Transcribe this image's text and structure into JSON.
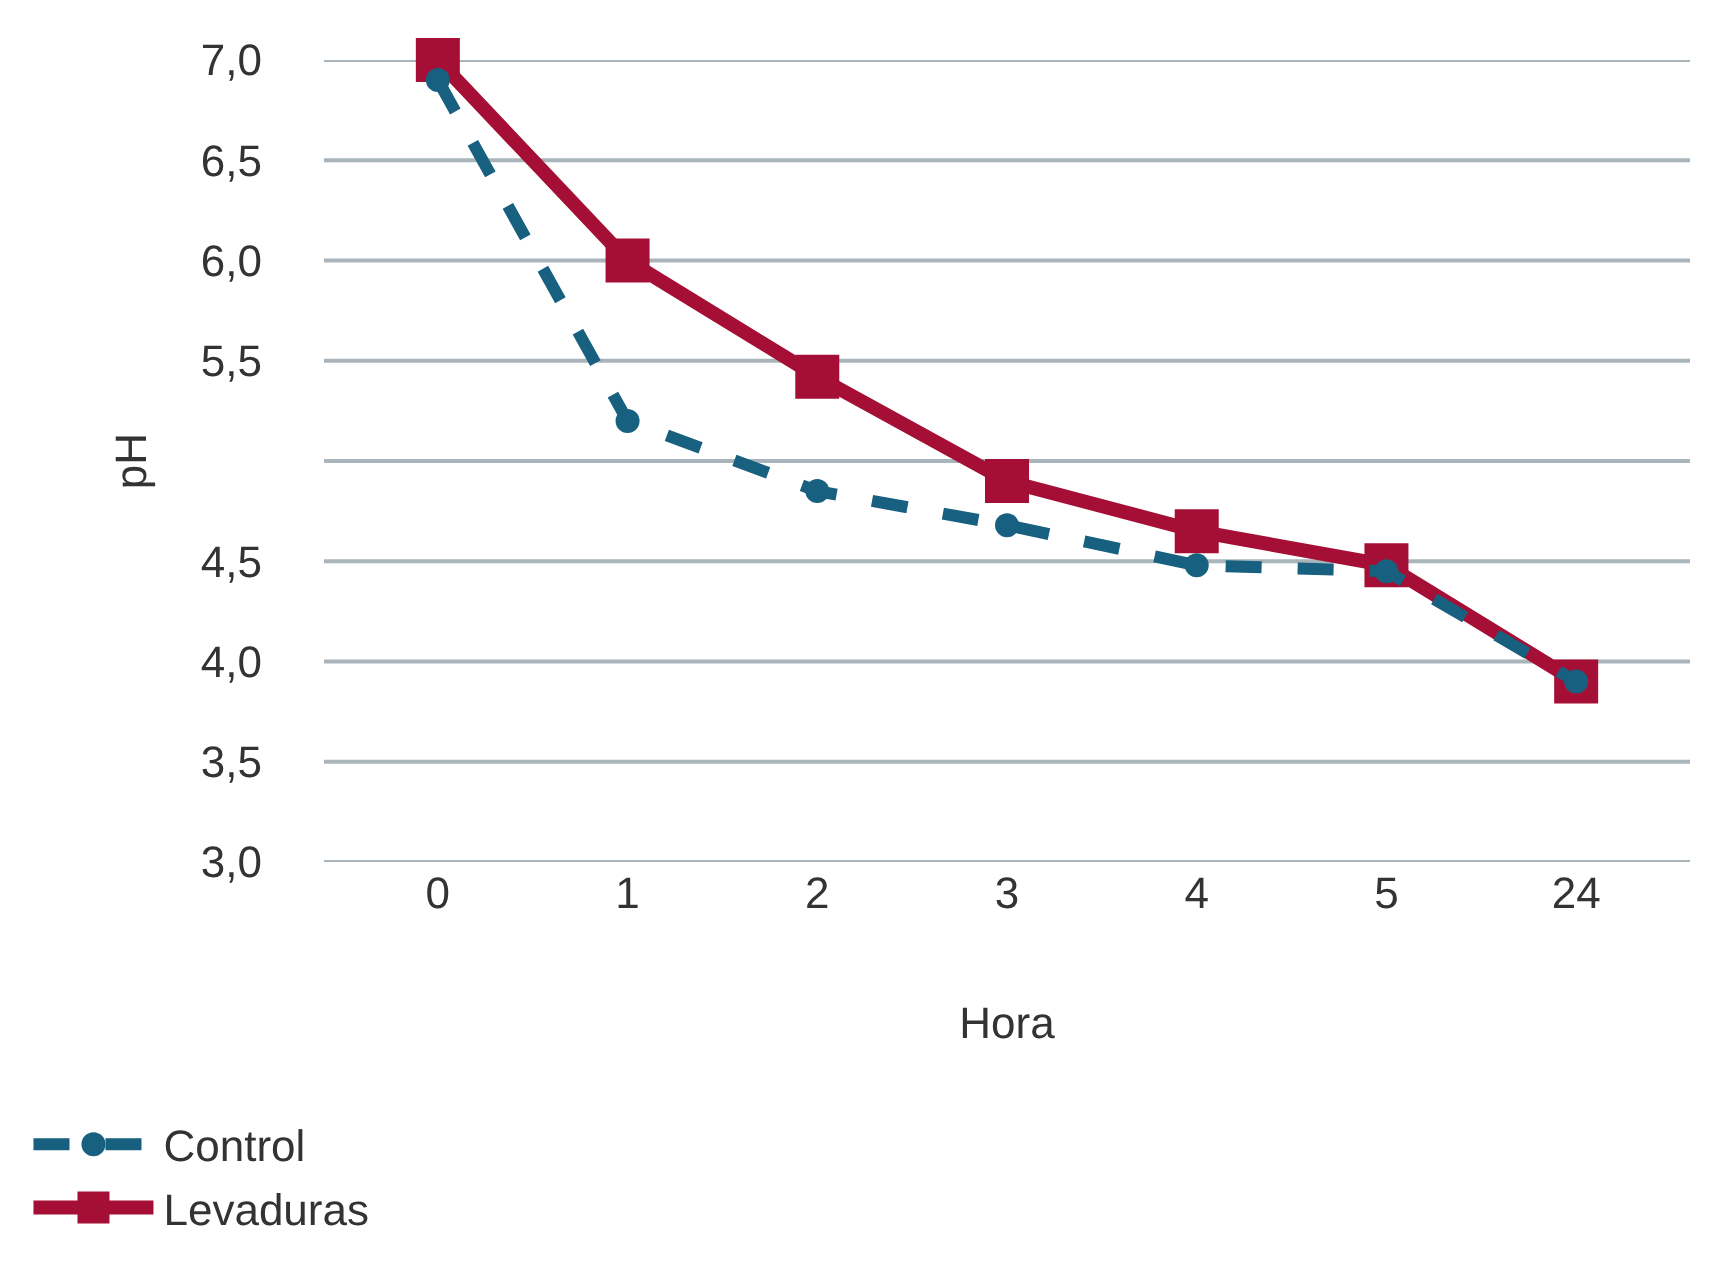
{
  "chart_data": {
    "type": "line",
    "xlabel": "Hora",
    "ylabel": "pH",
    "categories": [
      "0",
      "1",
      "2",
      "3",
      "4",
      "5",
      "24"
    ],
    "series": [
      {
        "name": "Control",
        "color": "#17607f",
        "marker": "circle",
        "line_style": "dashed",
        "values": [
          6.9,
          5.2,
          4.85,
          4.68,
          4.48,
          4.45,
          3.9
        ]
      },
      {
        "name": "Levaduras",
        "color": "#a50f35",
        "marker": "square",
        "line_style": "solid",
        "values": [
          7.0,
          6.0,
          5.42,
          4.9,
          4.65,
          4.48,
          3.9
        ]
      }
    ],
    "ylim": [
      3.0,
      7.0
    ],
    "yticks": [
      {
        "value": 3.0,
        "label": "3,0"
      },
      {
        "value": 3.5,
        "label": "3,5"
      },
      {
        "value": 4.0,
        "label": "4,0"
      },
      {
        "value": 4.5,
        "label": "4,5"
      },
      {
        "value": 5.0,
        "label": null
      },
      {
        "value": 5.5,
        "label": "5,5"
      },
      {
        "value": 6.0,
        "label": "6,0"
      },
      {
        "value": 6.5,
        "label": "6,5"
      },
      {
        "value": 7.0,
        "label": "7,0"
      }
    ],
    "grid": "y",
    "legend": "bottom left"
  }
}
